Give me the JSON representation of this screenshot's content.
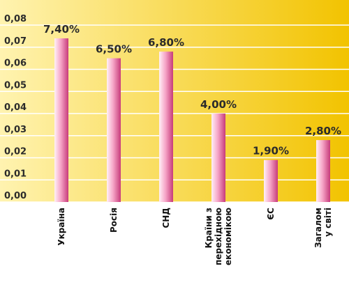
{
  "chart_data": {
    "type": "bar",
    "categories": [
      [
        "Україна"
      ],
      [
        "Росія"
      ],
      [
        "СНД"
      ],
      [
        "Країни з",
        "перехідною",
        "економікою"
      ],
      [
        "ЄС"
      ],
      [
        "Загалом",
        "у світі"
      ]
    ],
    "values": [
      0.074,
      0.065,
      0.068,
      0.04,
      0.019,
      0.028
    ],
    "data_labels": [
      "7,40%",
      "6,50%",
      "6,80%",
      "4,00%",
      "1,90%",
      "2,80%"
    ],
    "yticks": [
      "0,00",
      "0,01",
      "0,02",
      "0,03",
      "0,04",
      "0,05",
      "0,06",
      "0,07",
      "0,08"
    ],
    "ylim": [
      0,
      0.08
    ],
    "grid": true,
    "title": "",
    "xlabel": "",
    "ylabel": "",
    "colors": {
      "background_light": "#fff3b0",
      "background_dark": "#f2c300",
      "grid": "#ffffff",
      "bar_light": "#fff0f6",
      "bar_mid": "#f6a6c8",
      "bar_dark": "#c73b7a"
    }
  }
}
